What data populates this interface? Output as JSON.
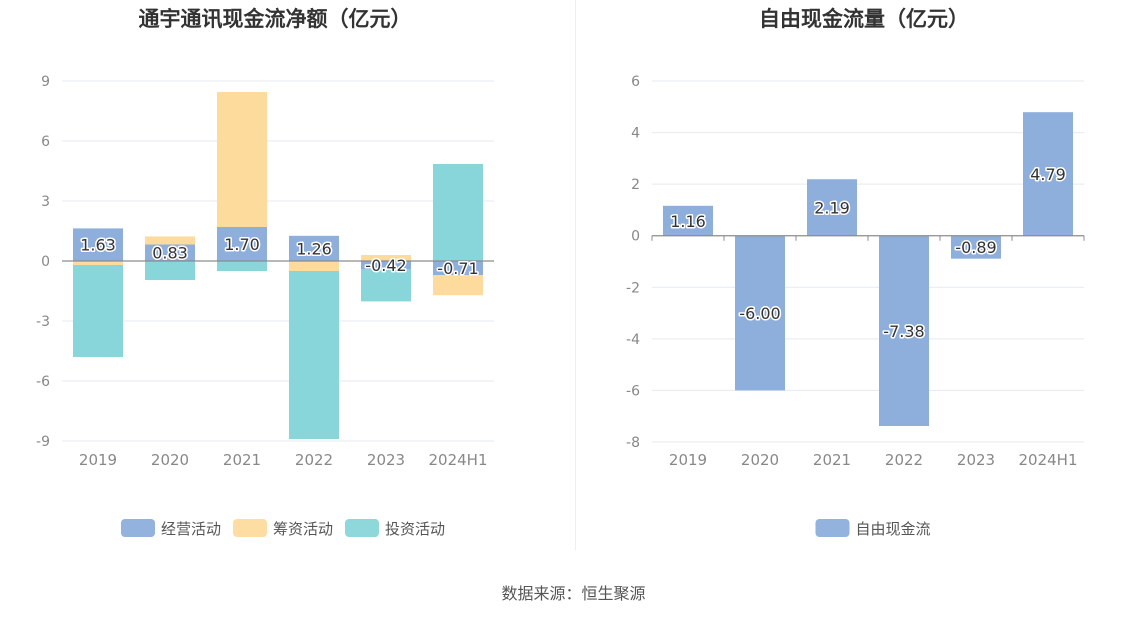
{
  "source_text": "数据来源：恒生聚源",
  "chart_data": [
    {
      "type": "bar",
      "stacked": true,
      "title": "通宇通讯现金流净额（亿元）",
      "categories": [
        "2019",
        "2020",
        "2021",
        "2022",
        "2023",
        "2024H1"
      ],
      "ylim": [
        -9,
        9
      ],
      "yticks": [
        9,
        6,
        3,
        0,
        -3,
        -6,
        -9
      ],
      "grid": true,
      "legend_position": "bottom",
      "series": [
        {
          "name": "经营活动",
          "color": "#8eaedc",
          "values": [
            1.63,
            0.83,
            1.7,
            1.26,
            -0.42,
            -0.71
          ],
          "labeled": true
        },
        {
          "name": "筹资活动",
          "color": "#fddb9c",
          "values": [
            -0.2,
            0.4,
            6.75,
            -0.5,
            0.3,
            -1.0
          ],
          "labeled": false
        },
        {
          "name": "投资活动",
          "color": "#88d6da",
          "values": [
            -4.6,
            -0.95,
            -0.5,
            -8.4,
            -1.6,
            4.85
          ],
          "labeled": false
        }
      ]
    },
    {
      "type": "bar",
      "title": "自由现金流量（亿元）",
      "categories": [
        "2019",
        "2020",
        "2021",
        "2022",
        "2023",
        "2024H1"
      ],
      "ylim": [
        -8,
        6
      ],
      "yticks": [
        6,
        4,
        2,
        0,
        -2,
        -4,
        -6,
        -8
      ],
      "grid": true,
      "legend_position": "bottom",
      "series": [
        {
          "name": "自由现金流",
          "color": "#8eaedc",
          "values": [
            1.16,
            -6.0,
            2.19,
            -7.38,
            -0.89,
            4.79
          ],
          "labeled": true
        }
      ]
    }
  ]
}
